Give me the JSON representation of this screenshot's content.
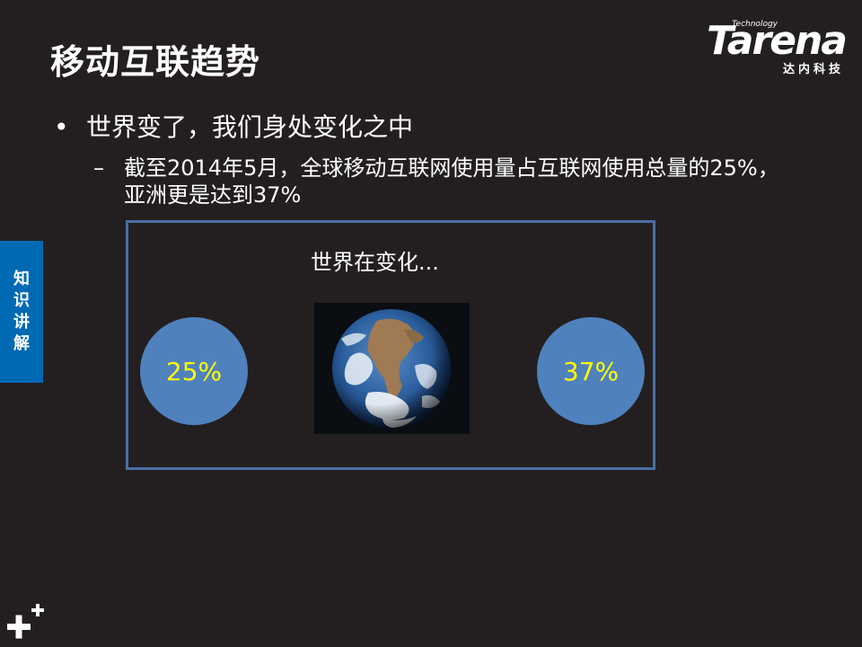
{
  "slide": {
    "title": "移动互联趋势",
    "bullet_level1": "世界变了，我们身处变化之中",
    "bullet_level2": "截至2014年5月，全球移动互联网使用量占互联网使用总量的25%，亚洲更是达到37%",
    "bullet_symbol": "•",
    "dash_symbol": "–"
  },
  "logo": {
    "brand": "Tarena",
    "tagline": "Technology",
    "chinese": "达内科技"
  },
  "sidebar_tab": {
    "chars": [
      "知",
      "识",
      "讲",
      "解"
    ]
  },
  "figure": {
    "caption": "世界在变化...",
    "left_value": "25%",
    "right_value": "37%",
    "image_icon": "earth-globe-photo"
  },
  "colors": {
    "background": "#231f20",
    "sidebar_blue": "#0069b4",
    "circle_blue": "#4f81bd",
    "value_yellow": "#ffff00",
    "frame_border": "#4a6fa5"
  }
}
